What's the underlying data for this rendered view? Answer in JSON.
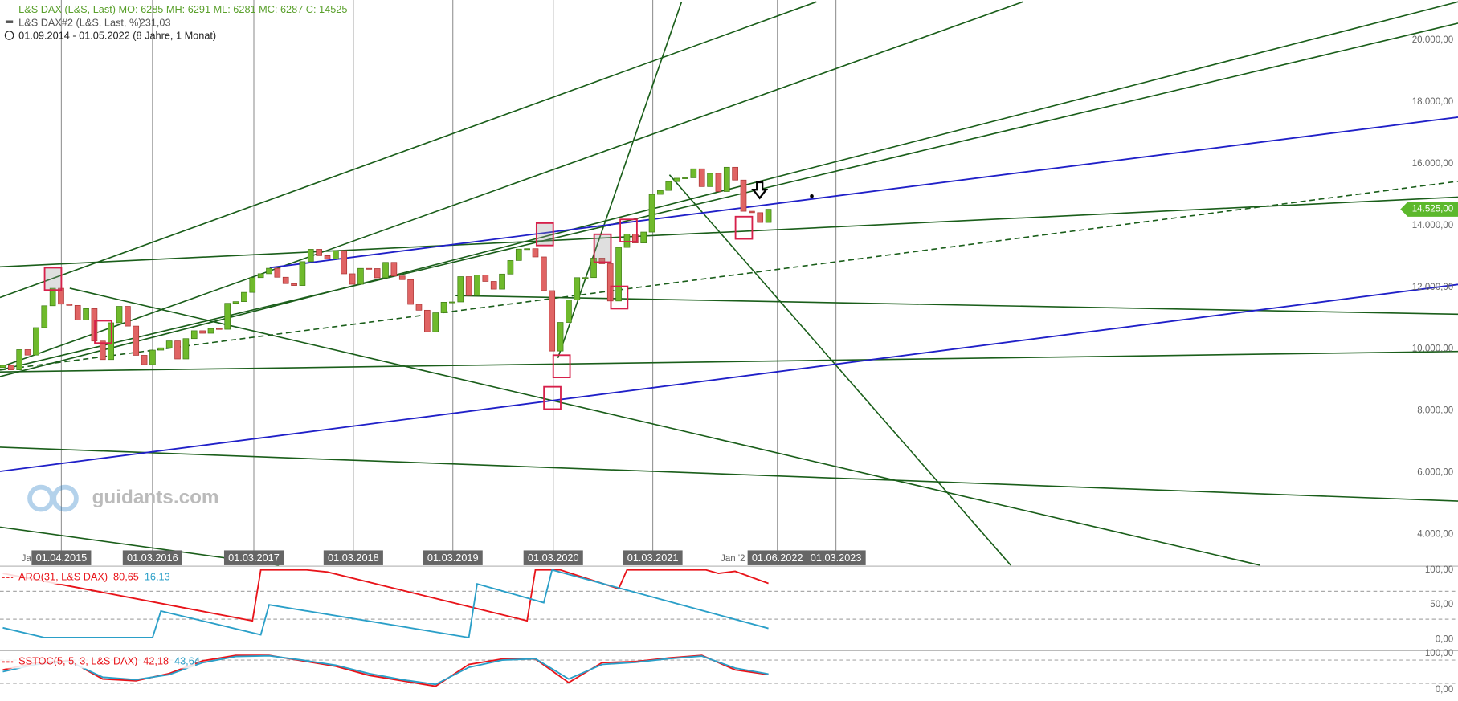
{
  "header": {
    "line1": "L&S DAX (L&S, Last)  MO: 6285 MH: 6291 ML: 6281 MC: 6287  C: 14525",
    "line2_name": "L&S DAX#2 (L&S, Last, %)",
    "line2_value": "231,03",
    "range": "01.09.2014 - 01.05.2022  (8 Jahre, 1 Monat)"
  },
  "watermark": "guidants.com",
  "chart_data": [
    {
      "type": "candlestick",
      "first_open": 9400,
      "closes": [
        9474,
        9326,
        9980,
        9805,
        10694,
        11401,
        11966,
        11454,
        11413,
        10945,
        11308,
        10259,
        9660,
        10850,
        11382,
        10743,
        9798,
        9495,
        9965,
        10039,
        10263,
        9680,
        10337,
        10592,
        10511,
        10665,
        10640,
        11481,
        11535,
        11834,
        12312,
        12438,
        12615,
        12325,
        12118,
        12056,
        12829,
        13230,
        13024,
        12918,
        13189,
        12436,
        12097,
        12612,
        12605,
        12306,
        12806,
        12364,
        12247,
        11447,
        11257,
        10559,
        11173,
        11516,
        11526,
        12344,
        11727,
        12399,
        12189,
        11939,
        12428,
        12867,
        13236,
        13249,
        12982,
        11890,
        9936,
        10862,
        11587,
        12311,
        12313,
        12945,
        12761,
        11556,
        13291,
        13719,
        13433,
        13786,
        15008,
        15136,
        15421,
        15531,
        15544,
        15835,
        15260,
        15688,
        15100,
        15885,
        15471,
        14461,
        14415,
        14098,
        14525
      ],
      "ylim": [
        3000,
        21300
      ],
      "yticks": [
        {
          "value": 20000,
          "label": "20.000,00"
        },
        {
          "value": 18000,
          "label": "18.000,00"
        },
        {
          "value": 16000,
          "label": "16.000,00"
        },
        {
          "value": 14000,
          "label": "14.000,00"
        },
        {
          "value": 12000,
          "label": "12.000,00"
        },
        {
          "value": 10000,
          "label": "10.000,00"
        },
        {
          "value": 8000,
          "label": "8.000,00"
        },
        {
          "value": 6000,
          "label": "6.000,00"
        },
        {
          "value": 4000,
          "label": "4.000,00"
        }
      ],
      "last": {
        "value": 14525,
        "label": "14.525,00"
      },
      "dates": [
        "01.04.2015",
        "01.03.2016",
        "01.03.2017",
        "01.03.2018",
        "01.03.2019",
        "01.03.2020",
        "01.03.2021",
        "01.06.2022",
        "01.03.2023"
      ],
      "partial_dates": [
        "Ja",
        "Jan '2"
      ]
    },
    {
      "type": "line",
      "name": "ARO(31, L&S DAX)",
      "ylim": [
        0,
        100
      ],
      "yticks": [
        {
          "value": 100,
          "label": "100,00"
        },
        {
          "value": 50,
          "label": "50,00"
        },
        {
          "value": 0,
          "label": "0,00"
        }
      ],
      "series": [
        {
          "name": "80,65",
          "color": "#e8141a",
          "x": [
            0,
            30,
            31,
            36.5,
            39,
            63,
            64,
            67,
            74,
            75,
            84.5,
            86,
            88,
            92
          ],
          "values": [
            95,
            27,
            100,
            100,
            97,
            27,
            100,
            100,
            73,
            100,
            100,
            95,
            98,
            80.65
          ]
        },
        {
          "name": "16,13",
          "color": "#2a9fc8",
          "x": [
            0,
            5,
            18,
            19,
            31,
            32,
            56,
            57,
            65,
            66,
            92
          ],
          "values": [
            17,
            3,
            3,
            41,
            7,
            50,
            3,
            80,
            53,
            100,
            16.13
          ]
        }
      ]
    },
    {
      "type": "line",
      "name": "SSTOC(5, 5, 3, L&S DAX)",
      "ylim": [
        0,
        100
      ],
      "yticks": [
        {
          "value": 100,
          "label": "100,00"
        },
        {
          "value": 0,
          "label": "0,00"
        }
      ],
      "series": [
        {
          "name": "42,18",
          "color": "#e8141a",
          "x": [
            0,
            4,
            8,
            12,
            16,
            20,
            24,
            28,
            32,
            36,
            40,
            44,
            48,
            52,
            56,
            60,
            64,
            68,
            72,
            76,
            80,
            84,
            88,
            92
          ],
          "values": [
            55,
            75,
            80,
            30,
            25,
            45,
            80,
            95,
            95,
            80,
            65,
            40,
            25,
            10,
            70,
            85,
            85,
            20,
            75,
            78,
            88,
            95,
            55,
            42.18
          ]
        },
        {
          "name": "43,64",
          "color": "#2a9fc8",
          "x": [
            0,
            4,
            8,
            12,
            16,
            20,
            24,
            28,
            32,
            36,
            40,
            44,
            48,
            52,
            56,
            60,
            64,
            68,
            72,
            76,
            80,
            84,
            88,
            92
          ],
          "values": [
            50,
            70,
            78,
            35,
            28,
            42,
            75,
            92,
            94,
            82,
            68,
            45,
            28,
            15,
            62,
            82,
            86,
            30,
            70,
            76,
            86,
            93,
            60,
            43.64
          ]
        }
      ]
    }
  ]
}
